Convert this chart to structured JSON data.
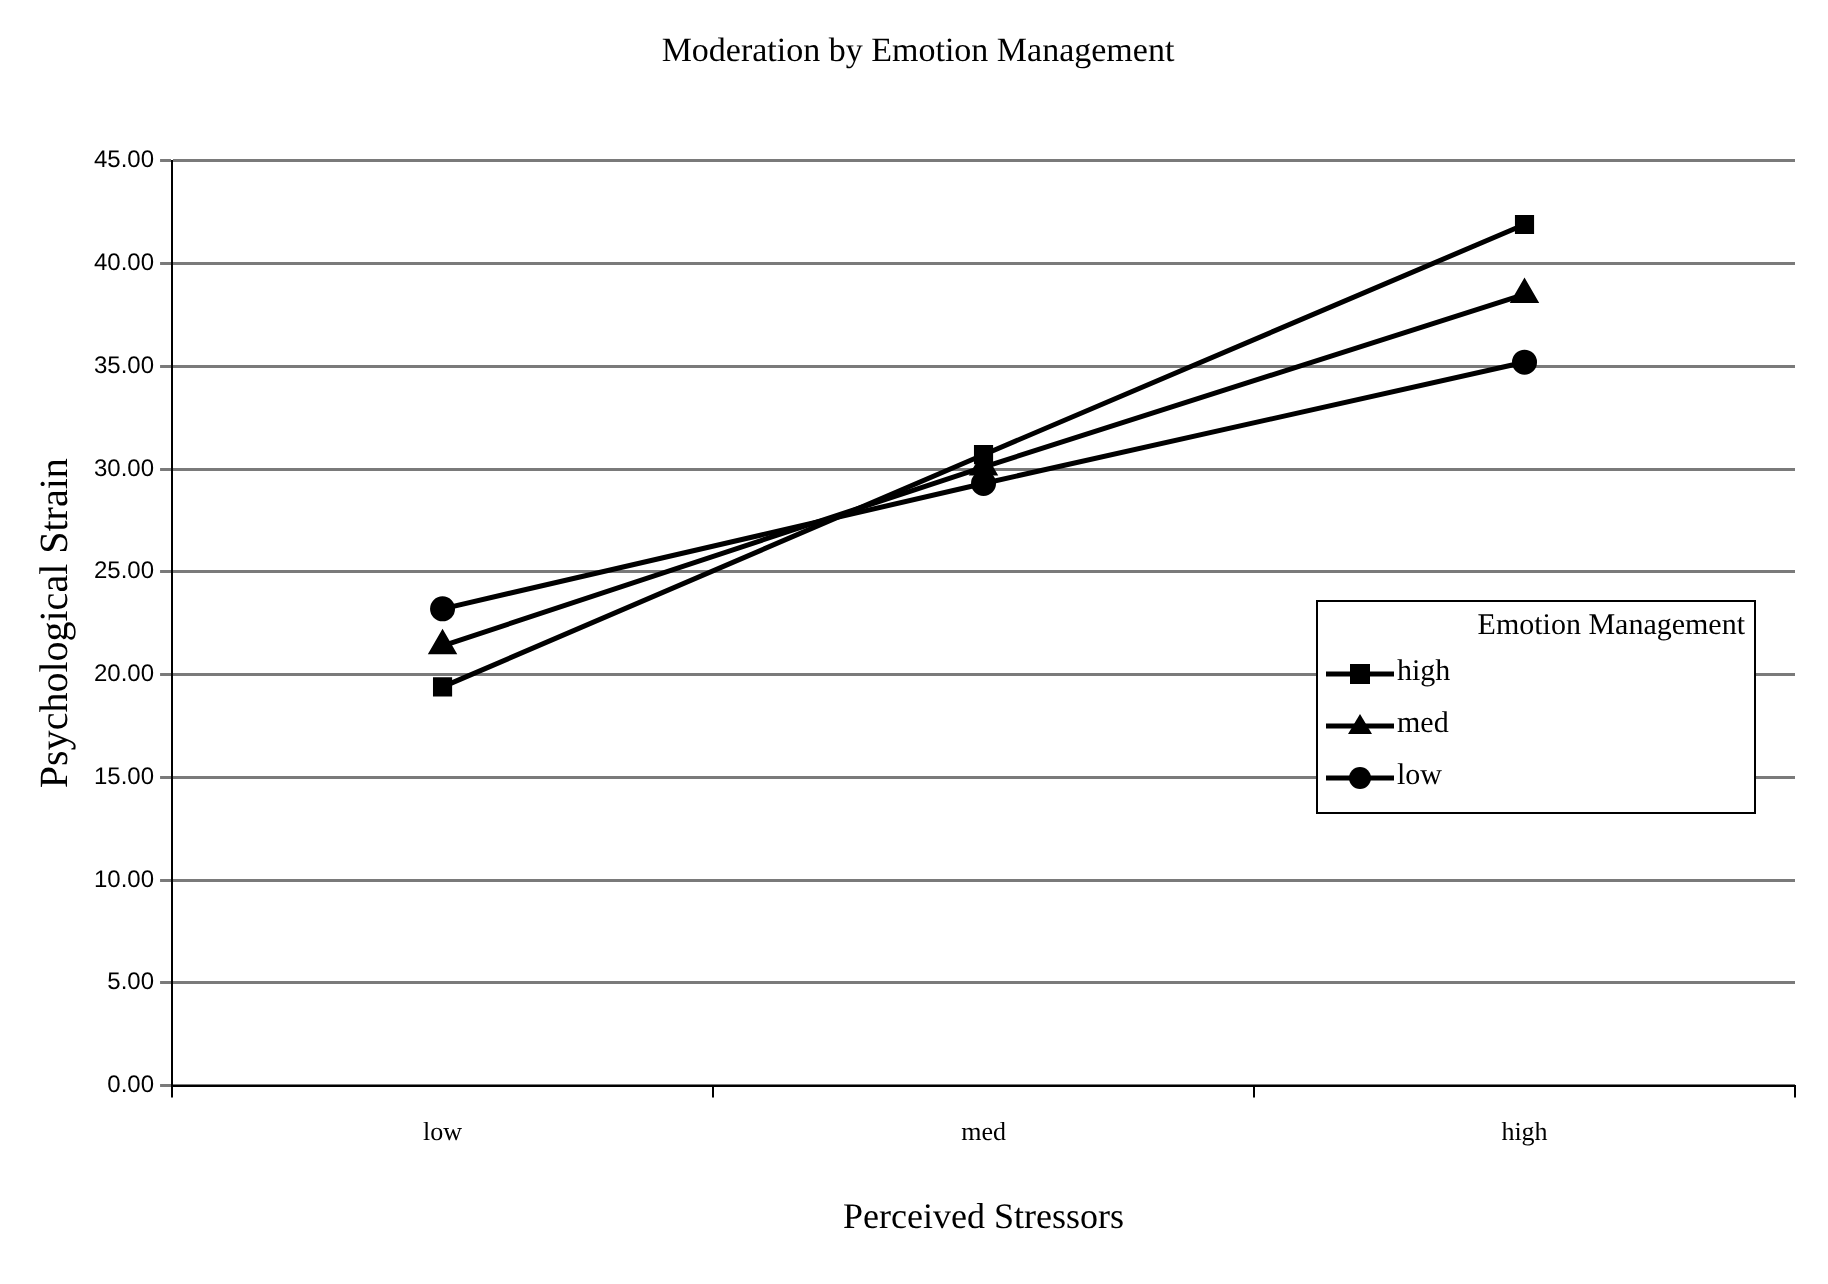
{
  "chart_data": {
    "type": "line",
    "title": "Moderation by Emotion Management",
    "xlabel": "Perceived Stressors",
    "ylabel": "Psychological Strain",
    "legend_title": "Emotion Management",
    "categories": [
      "low",
      "med",
      "high"
    ],
    "series": [
      {
        "name": "high",
        "color": "#000000",
        "marker": "square",
        "values": [
          19.4,
          30.7,
          41.9
        ]
      },
      {
        "name": "med",
        "color": "#000000",
        "marker": "triangle",
        "values": [
          21.4,
          30.1,
          38.5
        ]
      },
      {
        "name": "low",
        "color": "#000000",
        "marker": "circle",
        "values": [
          23.2,
          29.3,
          35.2
        ]
      }
    ],
    "ylim": [
      0,
      45
    ],
    "yticks": [
      {
        "value": 0,
        "label": "0.00"
      },
      {
        "value": 5,
        "label": "5.00"
      },
      {
        "value": 10,
        "label": "10.00"
      },
      {
        "value": 15,
        "label": "15.00"
      },
      {
        "value": 20,
        "label": "20.00"
      },
      {
        "value": 25,
        "label": "25.00"
      },
      {
        "value": 30,
        "label": "30.00"
      },
      {
        "value": 35,
        "label": "35.00"
      },
      {
        "value": 40,
        "label": "40.00"
      },
      {
        "value": 45,
        "label": "45.00"
      }
    ],
    "grid": "y",
    "legend": "right",
    "line_style": "solid"
  }
}
